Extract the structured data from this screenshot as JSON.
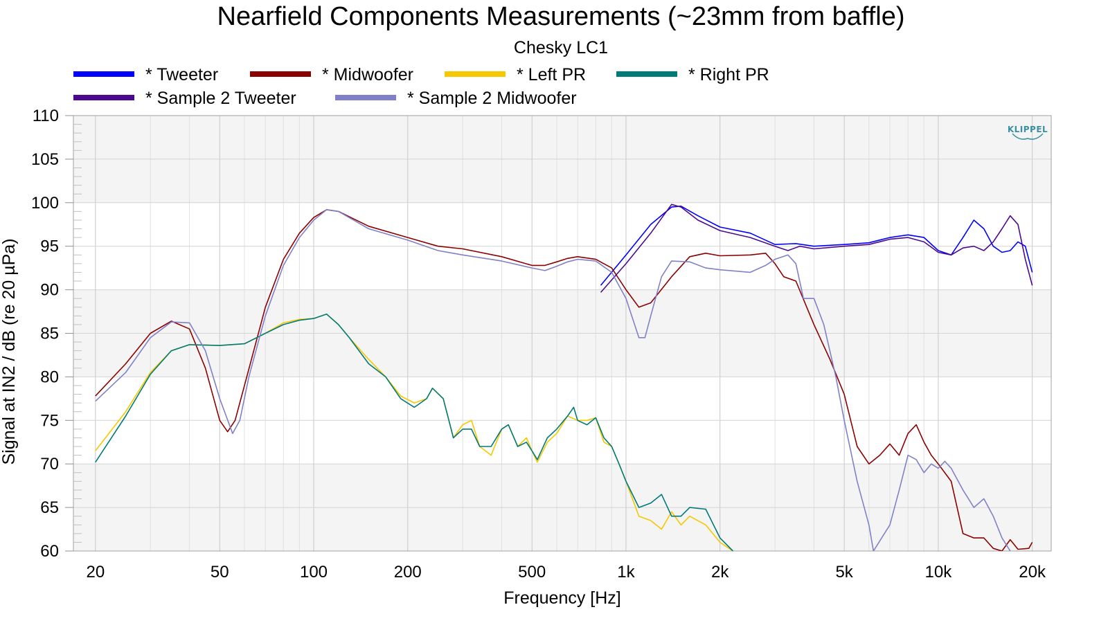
{
  "chart_data": {
    "type": "line",
    "title": "Nearfield Components Measurements (~23mm from baffle)",
    "subtitle": "Chesky LC1",
    "xlabel": "Frequency [Hz]",
    "ylabel": "Signal at IN2 / dB (re 20 µPa)",
    "x_scale": "log",
    "xlim": [
      17,
      23000
    ],
    "ylim": [
      60,
      110
    ],
    "x_ticks": [
      {
        "value": 20,
        "label": "20"
      },
      {
        "value": 50,
        "label": "50"
      },
      {
        "value": 100,
        "label": "100"
      },
      {
        "value": 200,
        "label": "200"
      },
      {
        "value": 500,
        "label": "500"
      },
      {
        "value": 1000,
        "label": "1k"
      },
      {
        "value": 2000,
        "label": "2k"
      },
      {
        "value": 5000,
        "label": "5k"
      },
      {
        "value": 10000,
        "label": "10k"
      },
      {
        "value": 20000,
        "label": "20k"
      }
    ],
    "y_ticks": [
      60,
      65,
      70,
      75,
      80,
      85,
      90,
      95,
      100,
      105,
      110
    ],
    "grid": true,
    "legend_position": "top-left",
    "logo": "KLIPPEL",
    "series": [
      {
        "name": "* Tweeter",
        "color": "#0000ff",
        "points": [
          [
            830,
            90.5
          ],
          [
            1000,
            94
          ],
          [
            1200,
            97.5
          ],
          [
            1400,
            99.5
          ],
          [
            1500,
            99.6
          ],
          [
            1700,
            98.5
          ],
          [
            2000,
            97.2
          ],
          [
            2500,
            96.5
          ],
          [
            3000,
            95.2
          ],
          [
            3500,
            95.3
          ],
          [
            4000,
            95
          ],
          [
            5000,
            95.2
          ],
          [
            6000,
            95.4
          ],
          [
            7000,
            96
          ],
          [
            8000,
            96.3
          ],
          [
            9000,
            96
          ],
          [
            10000,
            94.5
          ],
          [
            11000,
            94
          ],
          [
            12000,
            96
          ],
          [
            13000,
            98
          ],
          [
            14000,
            97
          ],
          [
            15000,
            95
          ],
          [
            16000,
            94.3
          ],
          [
            17000,
            94.5
          ],
          [
            18000,
            95.5
          ],
          [
            19000,
            95
          ],
          [
            20000,
            92
          ]
        ]
      },
      {
        "name": "* Midwoofer",
        "color": "#8b0000",
        "points": [
          [
            20,
            77.8
          ],
          [
            25,
            81.5
          ],
          [
            30,
            85
          ],
          [
            35,
            86.4
          ],
          [
            40,
            85.5
          ],
          [
            45,
            81
          ],
          [
            50,
            75
          ],
          [
            53,
            73.7
          ],
          [
            56,
            75
          ],
          [
            60,
            79
          ],
          [
            70,
            88
          ],
          [
            80,
            93.5
          ],
          [
            90,
            96.5
          ],
          [
            100,
            98.3
          ],
          [
            110,
            99.2
          ],
          [
            120,
            99
          ],
          [
            150,
            97.3
          ],
          [
            200,
            96
          ],
          [
            250,
            95
          ],
          [
            300,
            94.7
          ],
          [
            400,
            93.8
          ],
          [
            500,
            92.8
          ],
          [
            550,
            92.8
          ],
          [
            600,
            93.2
          ],
          [
            650,
            93.6
          ],
          [
            700,
            93.8
          ],
          [
            800,
            93.5
          ],
          [
            900,
            92.5
          ],
          [
            1000,
            90
          ],
          [
            1100,
            88
          ],
          [
            1200,
            88.5
          ],
          [
            1400,
            91.5
          ],
          [
            1600,
            93.8
          ],
          [
            1800,
            94.2
          ],
          [
            2000,
            93.9
          ],
          [
            2500,
            94
          ],
          [
            2800,
            94.2
          ],
          [
            3000,
            93
          ],
          [
            3200,
            91.5
          ],
          [
            3500,
            91
          ],
          [
            4000,
            86
          ],
          [
            4500,
            82
          ],
          [
            5000,
            78
          ],
          [
            5500,
            72
          ],
          [
            6000,
            70
          ],
          [
            6500,
            71
          ],
          [
            7000,
            72.3
          ],
          [
            7500,
            71
          ],
          [
            8000,
            73.5
          ],
          [
            8500,
            74.5
          ],
          [
            9000,
            72.5
          ],
          [
            9500,
            71
          ],
          [
            10000,
            70
          ],
          [
            11000,
            68
          ],
          [
            12000,
            62
          ],
          [
            13000,
            61.5
          ],
          [
            14000,
            61.5
          ],
          [
            15000,
            60.3
          ],
          [
            16000,
            60
          ],
          [
            17000,
            61.3
          ],
          [
            18000,
            60.2
          ],
          [
            19500,
            60.3
          ],
          [
            20000,
            61
          ]
        ]
      },
      {
        "name": "* Left PR",
        "color": "#f5c800",
        "points": [
          [
            20,
            71.5
          ],
          [
            25,
            76
          ],
          [
            30,
            80.5
          ],
          [
            35,
            83
          ],
          [
            40,
            83.7
          ],
          [
            50,
            83.6
          ],
          [
            60,
            83.8
          ],
          [
            70,
            85
          ],
          [
            80,
            86.2
          ],
          [
            90,
            86.6
          ],
          [
            100,
            86.7
          ],
          [
            110,
            87.2
          ],
          [
            120,
            86
          ],
          [
            130,
            84.5
          ],
          [
            150,
            82
          ],
          [
            170,
            80
          ],
          [
            190,
            77.8
          ],
          [
            210,
            77
          ],
          [
            230,
            77.5
          ],
          [
            240,
            78.7
          ],
          [
            260,
            77.5
          ],
          [
            280,
            73
          ],
          [
            300,
            74.5
          ],
          [
            320,
            75
          ],
          [
            340,
            72
          ],
          [
            370,
            71
          ],
          [
            400,
            74
          ],
          [
            420,
            74.5
          ],
          [
            450,
            72
          ],
          [
            480,
            73
          ],
          [
            500,
            71.5
          ],
          [
            520,
            70.2
          ],
          [
            560,
            72.5
          ],
          [
            600,
            73.5
          ],
          [
            650,
            75.5
          ],
          [
            700,
            75
          ],
          [
            750,
            75
          ],
          [
            800,
            75.3
          ],
          [
            850,
            72.5
          ],
          [
            900,
            72
          ],
          [
            950,
            70
          ],
          [
            1000,
            68
          ],
          [
            1100,
            64
          ],
          [
            1200,
            63.5
          ],
          [
            1300,
            62.5
          ],
          [
            1400,
            64.5
          ],
          [
            1500,
            63
          ],
          [
            1600,
            64
          ],
          [
            1800,
            63
          ],
          [
            2000,
            61
          ],
          [
            2200,
            60
          ]
        ]
      },
      {
        "name": "* Right PR",
        "color": "#007a78",
        "points": [
          [
            20,
            70.2
          ],
          [
            25,
            75.5
          ],
          [
            30,
            80.3
          ],
          [
            35,
            83
          ],
          [
            40,
            83.7
          ],
          [
            50,
            83.6
          ],
          [
            60,
            83.8
          ],
          [
            70,
            85
          ],
          [
            80,
            86
          ],
          [
            90,
            86.5
          ],
          [
            100,
            86.7
          ],
          [
            110,
            87.2
          ],
          [
            120,
            86
          ],
          [
            130,
            84.5
          ],
          [
            150,
            81.5
          ],
          [
            170,
            80
          ],
          [
            190,
            77.5
          ],
          [
            210,
            76.5
          ],
          [
            230,
            77.5
          ],
          [
            240,
            78.7
          ],
          [
            260,
            77.5
          ],
          [
            280,
            73
          ],
          [
            300,
            74
          ],
          [
            320,
            74
          ],
          [
            340,
            72
          ],
          [
            370,
            72
          ],
          [
            400,
            74
          ],
          [
            420,
            74.5
          ],
          [
            450,
            72
          ],
          [
            480,
            72.5
          ],
          [
            500,
            71.5
          ],
          [
            520,
            70.5
          ],
          [
            560,
            73
          ],
          [
            600,
            74
          ],
          [
            650,
            75.5
          ],
          [
            680,
            76.5
          ],
          [
            700,
            75
          ],
          [
            750,
            74.5
          ],
          [
            800,
            75.3
          ],
          [
            850,
            73
          ],
          [
            900,
            72
          ],
          [
            950,
            70
          ],
          [
            1000,
            68
          ],
          [
            1100,
            65
          ],
          [
            1200,
            65.5
          ],
          [
            1300,
            66.5
          ],
          [
            1400,
            64
          ],
          [
            1500,
            64
          ],
          [
            1600,
            65
          ],
          [
            1800,
            64.8
          ],
          [
            2000,
            61.5
          ],
          [
            2200,
            60
          ]
        ]
      },
      {
        "name": "* Sample 2 Tweeter",
        "color": "#4b0a8c",
        "points": [
          [
            830,
            89.7
          ],
          [
            1000,
            93
          ],
          [
            1200,
            96.5
          ],
          [
            1400,
            99.8
          ],
          [
            1500,
            99.5
          ],
          [
            1700,
            98
          ],
          [
            2000,
            96.8
          ],
          [
            2500,
            96
          ],
          [
            3000,
            95
          ],
          [
            3300,
            94.5
          ],
          [
            3600,
            95
          ],
          [
            4000,
            94.7
          ],
          [
            5000,
            95
          ],
          [
            6000,
            95.2
          ],
          [
            7000,
            95.8
          ],
          [
            8000,
            96
          ],
          [
            9000,
            95.5
          ],
          [
            10000,
            94.3
          ],
          [
            11000,
            94
          ],
          [
            12000,
            94.8
          ],
          [
            13000,
            95
          ],
          [
            14000,
            94.5
          ],
          [
            15000,
            95.5
          ],
          [
            16000,
            97
          ],
          [
            17000,
            98.5
          ],
          [
            18000,
            97.5
          ],
          [
            19000,
            93.5
          ],
          [
            20000,
            90.5
          ]
        ]
      },
      {
        "name": "* Sample 2 Midwoofer",
        "color": "#8080c8",
        "points": [
          [
            20,
            77.2
          ],
          [
            25,
            80.5
          ],
          [
            30,
            84.5
          ],
          [
            35,
            86.3
          ],
          [
            40,
            86.2
          ],
          [
            45,
            83
          ],
          [
            50,
            77.5
          ],
          [
            55,
            73.5
          ],
          [
            58,
            75
          ],
          [
            62,
            80
          ],
          [
            70,
            87
          ],
          [
            80,
            92.8
          ],
          [
            90,
            96
          ],
          [
            100,
            98
          ],
          [
            110,
            99.2
          ],
          [
            120,
            99
          ],
          [
            150,
            97
          ],
          [
            200,
            95.7
          ],
          [
            250,
            94.5
          ],
          [
            300,
            94
          ],
          [
            400,
            93.3
          ],
          [
            500,
            92.5
          ],
          [
            550,
            92.2
          ],
          [
            600,
            92.7
          ],
          [
            650,
            93.2
          ],
          [
            700,
            93.5
          ],
          [
            800,
            93.3
          ],
          [
            900,
            92
          ],
          [
            1000,
            89
          ],
          [
            1100,
            84.5
          ],
          [
            1150,
            84.5
          ],
          [
            1200,
            87
          ],
          [
            1300,
            91.5
          ],
          [
            1400,
            93.3
          ],
          [
            1600,
            93.2
          ],
          [
            1800,
            92.5
          ],
          [
            2000,
            92.3
          ],
          [
            2500,
            92
          ],
          [
            2800,
            92.8
          ],
          [
            3000,
            93.5
          ],
          [
            3300,
            94
          ],
          [
            3500,
            93
          ],
          [
            3700,
            89
          ],
          [
            4000,
            89
          ],
          [
            4300,
            86
          ],
          [
            4700,
            80
          ],
          [
            5000,
            75
          ],
          [
            5500,
            68
          ],
          [
            6000,
            63
          ],
          [
            6200,
            60
          ],
          [
            7000,
            63
          ],
          [
            7500,
            67
          ],
          [
            8000,
            71
          ],
          [
            8500,
            70.5
          ],
          [
            9000,
            69
          ],
          [
            9500,
            70
          ],
          [
            10000,
            69.5
          ],
          [
            10500,
            70.3
          ],
          [
            11000,
            69.5
          ],
          [
            12000,
            67
          ],
          [
            13000,
            65
          ],
          [
            14000,
            66
          ],
          [
            15000,
            64
          ],
          [
            16000,
            61.5
          ],
          [
            17000,
            60
          ]
        ]
      }
    ]
  }
}
